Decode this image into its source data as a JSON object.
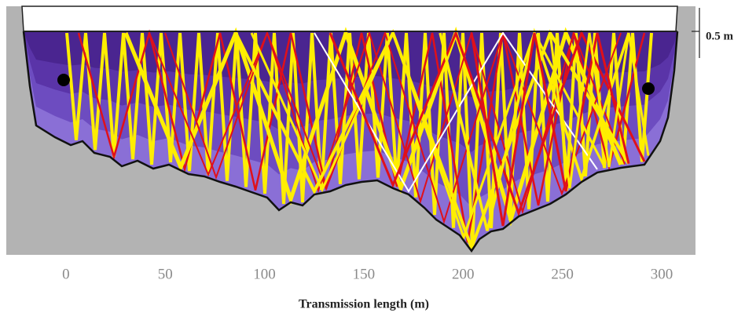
{
  "chart_data": {
    "type": "cross-section",
    "xlabel": "Transmission length (m)",
    "xlim": [
      -30,
      317
    ],
    "xticks": [
      0,
      50,
      100,
      150,
      200,
      250,
      300
    ],
    "annotation": "0.5 m"
  }
}
